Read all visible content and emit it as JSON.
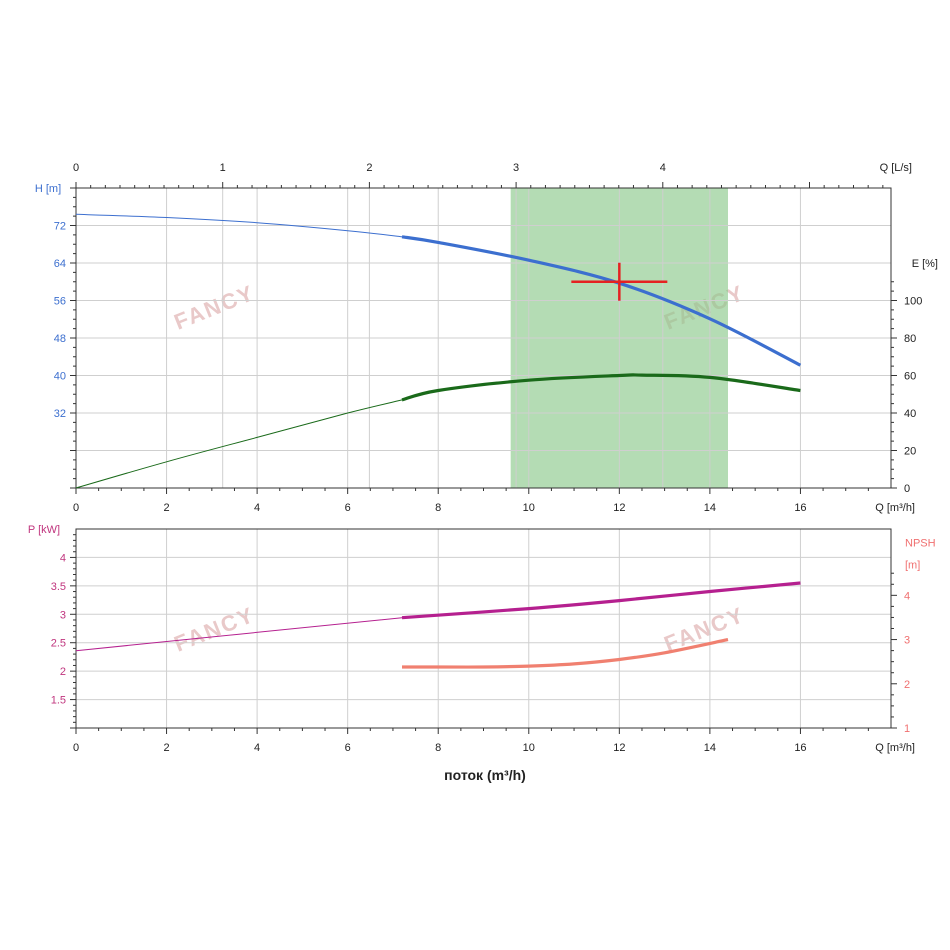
{
  "chart_data": [
    {
      "type": "line",
      "panel": "head-efficiency",
      "x_top": {
        "label": "Q [L/s]",
        "ticks": [
          0,
          1,
          2,
          3,
          4
        ],
        "range": [
          0,
          5.5556
        ]
      },
      "x_bottom": {
        "label": "Q [m³/h]",
        "ticks": [
          0,
          2,
          4,
          6,
          8,
          10,
          12,
          14,
          16
        ],
        "range": [
          0,
          18
        ]
      },
      "y_left": {
        "label": "H [m]",
        "ticks": [
          32,
          40,
          48,
          56,
          64,
          72
        ],
        "range": [
          16,
          80
        ],
        "color": "#3c6fcf"
      },
      "y_right": {
        "label": "E [%]",
        "ticks": [
          0,
          20,
          40,
          60,
          80,
          100
        ],
        "range": [
          0,
          160
        ],
        "color": "#1a6a1a"
      },
      "grid": true,
      "highlight_region": {
        "x": [
          9.6,
          14.4
        ],
        "color": "#8cc98c"
      },
      "duty_point": {
        "x": 12,
        "y": 60,
        "color": "#e52222"
      },
      "series": [
        {
          "axis": "left",
          "color": "#3c6fcf",
          "x": [
            0,
            2,
            4,
            6,
            7.2,
            8,
            10,
            12,
            14,
            16
          ],
          "y": [
            74.4,
            73.7,
            72.6,
            70.9,
            69.6,
            68.4,
            64.6,
            59.7,
            52.1,
            42.2
          ]
        },
        {
          "axis": "right",
          "color": "#1a6a1a",
          "x": [
            0,
            2,
            4,
            6,
            7.2,
            8,
            10,
            12,
            12.5,
            14,
            16
          ],
          "y": [
            0,
            14,
            27,
            40,
            47,
            52,
            57.5,
            60,
            60.2,
            59,
            52
          ]
        }
      ]
    },
    {
      "type": "line",
      "panel": "power-npsh",
      "x_bottom": {
        "label": "Q [m³/h]",
        "ticks": [
          0,
          2,
          4,
          6,
          8,
          10,
          12,
          14,
          16
        ],
        "range": [
          0,
          18
        ]
      },
      "y_left": {
        "label": "P [kW]",
        "ticks": [
          1.5,
          2,
          2.5,
          3,
          3.5,
          4
        ],
        "range": [
          1,
          4.5
        ],
        "color": "#c0357e"
      },
      "y_right": {
        "label": "NPSH",
        "label2": "[m]",
        "ticks": [
          1,
          2,
          3,
          4
        ],
        "range": [
          1,
          5.5
        ],
        "color": "#f07070"
      },
      "grid": true,
      "series": [
        {
          "axis": "left",
          "color": "#b5208f",
          "x": [
            0,
            7.2,
            10,
            12,
            14,
            16
          ],
          "y": [
            2.36,
            2.94,
            3.1,
            3.24,
            3.4,
            3.55
          ]
        },
        {
          "axis": "right",
          "color": "#f08070",
          "x": [
            7.2,
            8,
            9,
            10,
            11,
            12,
            13,
            14.4
          ],
          "y": [
            2.38,
            2.38,
            2.38,
            2.4,
            2.45,
            2.55,
            2.7,
            3.0
          ]
        }
      ]
    }
  ],
  "xlabel": "поток (m³/h)",
  "watermark": "FANCY"
}
